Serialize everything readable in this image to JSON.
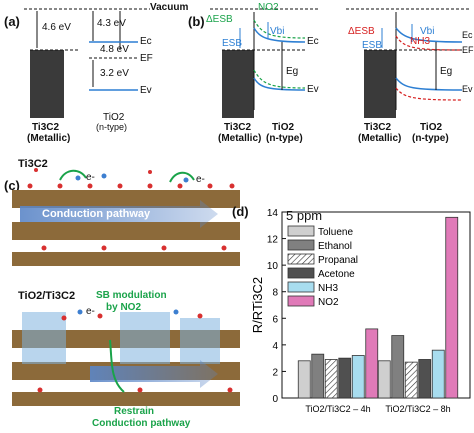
{
  "panel_a": {
    "letter": "(a)",
    "vacuum": "Vacuum",
    "work_fn_ti3c2": "4.6 eV",
    "chi_tio2": "4.3 eV",
    "work_fn_tio2": "4.8 eV",
    "gap": "3.2 eV",
    "ec": "Ec",
    "ef": "EF",
    "ev": "Ev",
    "metal_name": "Ti3C2",
    "metal_type": "(Metallic)",
    "semi_name": "TiO2",
    "semi_type": "(n-type)"
  },
  "panel_b": {
    "letter": "(b)",
    "no2": "NO2",
    "nh3": "NH3",
    "delta_sb": "ΔESB",
    "esb": "ESB",
    "vbi": "Vbi",
    "eg": "Eg",
    "ec": "Ec",
    "ef": "EF",
    "ev": "Ev",
    "metal_name": "Ti3C2",
    "metal_type": "(Metallic)",
    "semi_name": "TiO2",
    "semi_type": "(n-type)"
  },
  "panel_c": {
    "letter": "(c)",
    "title_top": "Ti3C2",
    "title_bottom": "TiO2/Ti3C2",
    "conduction": "Conduction pathway",
    "electron": "e-",
    "sb_mod_1": "SB modulation",
    "sb_mod_2": "by NO2",
    "restrain_1": "Restrain",
    "restrain_2": "Conduction pathway"
  },
  "panel_d": {
    "letter": "(d)",
    "ppm": "5 ppm"
  },
  "chart_data": {
    "type": "bar",
    "title": "",
    "ylabel": "R/RTi3C2",
    "ylim": [
      0,
      14
    ],
    "yticks": [
      0,
      2,
      4,
      6,
      8,
      10,
      12,
      14
    ],
    "categories": [
      "TiO2/Ti3C2 – 4h",
      "TiO2/Ti3C2 – 8h"
    ],
    "legend_position": "upper-left",
    "series": [
      {
        "name": "Toluene",
        "color": "#cfcfcf",
        "values": [
          2.8,
          2.8
        ]
      },
      {
        "name": "Ethanol",
        "color": "#808080",
        "values": [
          3.3,
          4.7
        ]
      },
      {
        "name": "Propanal",
        "color": "#ffffff",
        "pattern": "hatch",
        "values": [
          2.9,
          2.7
        ]
      },
      {
        "name": "Acetone",
        "color": "#505050",
        "values": [
          3.0,
          2.9
        ]
      },
      {
        "name": "NH3",
        "color": "#a8ddef",
        "values": [
          3.2,
          3.6
        ]
      },
      {
        "name": "NO2",
        "color": "#e07ab8",
        "values": [
          5.2,
          13.6
        ]
      }
    ]
  }
}
